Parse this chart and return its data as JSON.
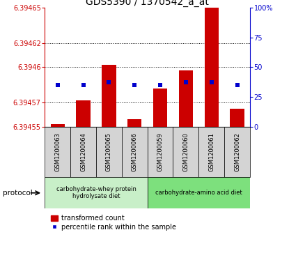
{
  "title": "GDS5390 / 1370542_a_at",
  "samples": [
    "GSM1200063",
    "GSM1200064",
    "GSM1200065",
    "GSM1200066",
    "GSM1200059",
    "GSM1200060",
    "GSM1200061",
    "GSM1200062"
  ],
  "red_values": [
    6.394552,
    6.394572,
    6.394602,
    6.394556,
    6.394582,
    6.394597,
    6.39465,
    6.394565
  ],
  "blue_values": [
    35,
    35,
    37,
    35,
    35,
    37,
    37,
    35
  ],
  "baseline": 6.39455,
  "ylim_left": [
    6.39455,
    6.39465
  ],
  "ylim_right": [
    0,
    100
  ],
  "yticks_left": [
    6.39455,
    6.39457,
    6.3946,
    6.39462,
    6.39465
  ],
  "yticks_right": [
    0,
    25,
    50,
    75,
    100
  ],
  "ytick_labels_left": [
    "6.39455",
    "6.39457",
    "6.3946",
    "6.39462",
    "6.39465"
  ],
  "ytick_labels_right": [
    "0",
    "25",
    "50",
    "75",
    "100%"
  ],
  "left_color": "#cc0000",
  "blue_color": "#0000cc",
  "bar_color": "#cc0000",
  "group1_indices": [
    0,
    1,
    2,
    3
  ],
  "group2_indices": [
    4,
    5,
    6,
    7
  ],
  "group1_label": "carbohydrate-whey protein\nhydrolysate diet",
  "group2_label": "carbohydrate-amino acid diet",
  "group1_bg": "#c8efc8",
  "group2_bg": "#7de07d",
  "sample_bg": "#d4d4d4",
  "protocol_label": "protocol",
  "legend_red": "transformed count",
  "legend_blue": "percentile rank within the sample",
  "grid_color": "#888888",
  "title_fontsize": 10,
  "tick_fontsize": 7,
  "label_fontsize": 7,
  "bar_width": 0.55
}
